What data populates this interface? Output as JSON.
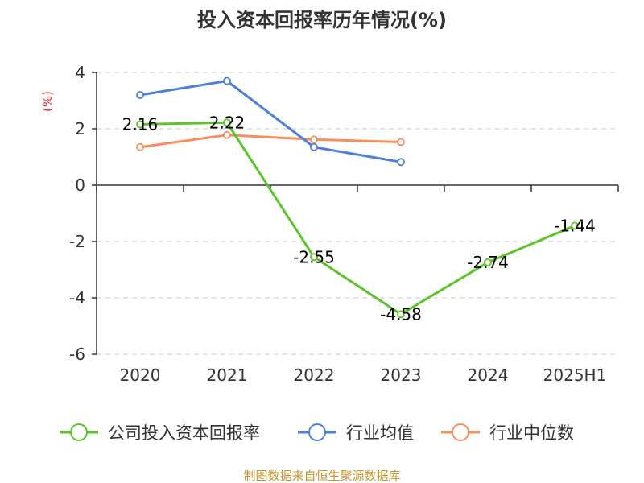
{
  "chart_data": {
    "type": "line",
    "title": "投入资本回报率历年情况(%)",
    "ylabel": "(%)",
    "xlabel": "",
    "categories": [
      "2020",
      "2021",
      "2022",
      "2023",
      "2024",
      "2025H1"
    ],
    "ylim": [
      -6,
      4
    ],
    "yticks": [
      4,
      2,
      0,
      -2,
      -4,
      -6
    ],
    "grid": true,
    "legend_position": "bottom",
    "series": [
      {
        "name": "公司投入资本回报率",
        "color": "#5cc42a",
        "values": [
          2.16,
          2.22,
          -2.55,
          -4.58,
          -2.74,
          -1.44
        ],
        "labels": [
          "2.16",
          "2.22",
          "-2.55",
          "-4.58",
          "-2.74",
          "-1.44"
        ]
      },
      {
        "name": "行业均值",
        "color": "#4b7fd9",
        "values": [
          3.2,
          3.7,
          1.35,
          0.82,
          null,
          null
        ]
      },
      {
        "name": "行业中位数",
        "color": "#f78f5c",
        "values": [
          1.35,
          1.78,
          1.62,
          1.53,
          null,
          null
        ]
      }
    ]
  },
  "source": "制图数据来自恒生聚源数据库"
}
